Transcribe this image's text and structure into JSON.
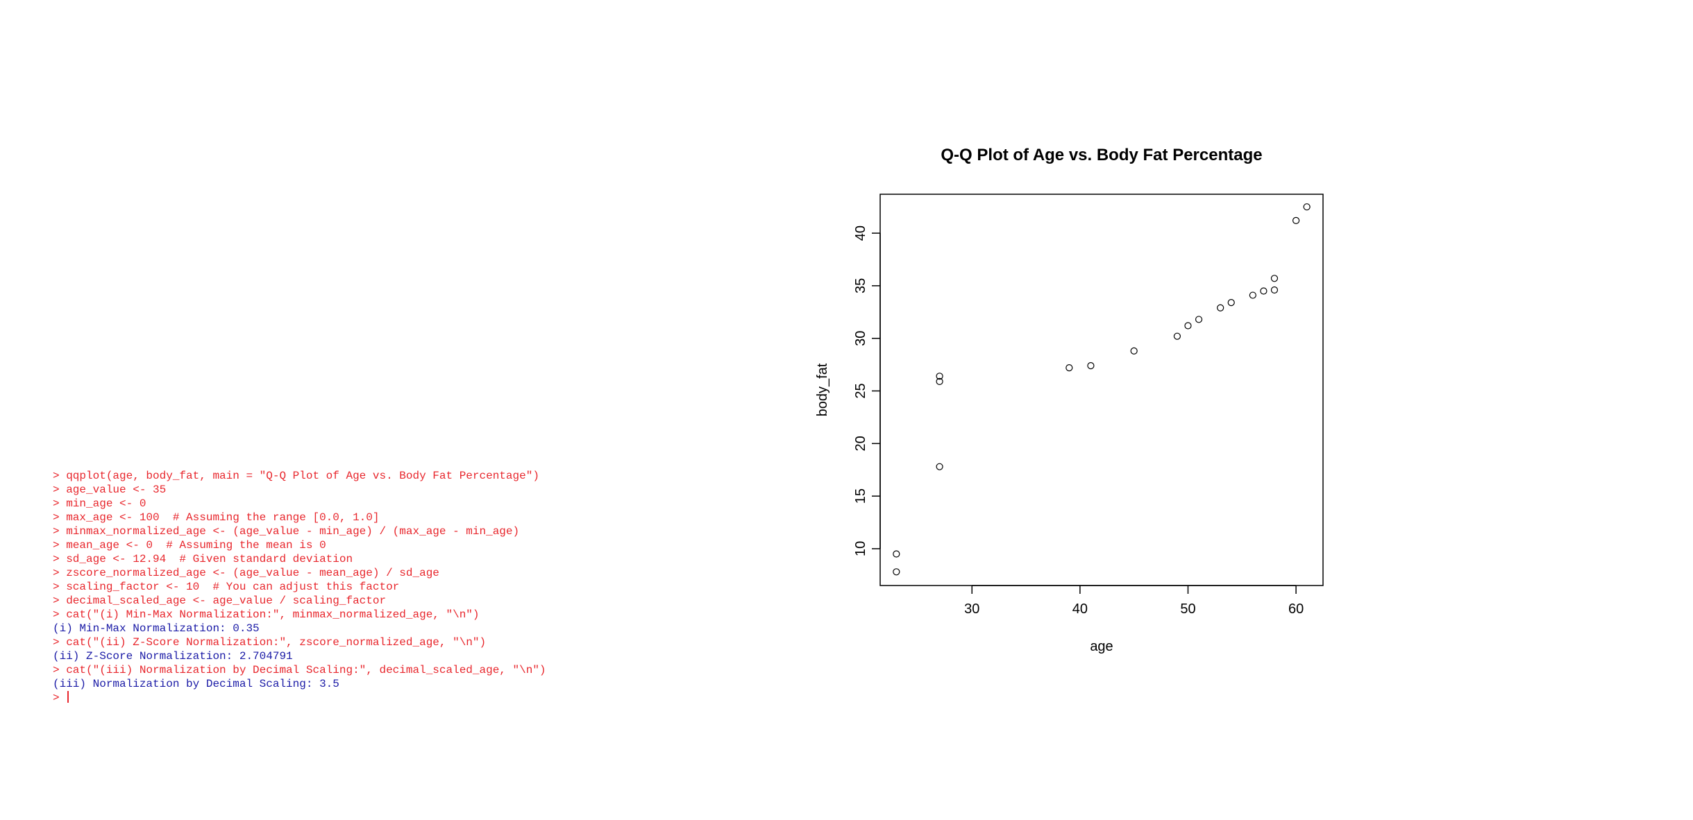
{
  "console": {
    "lines": [
      {
        "kind": "cmd",
        "text": "> qqplot(age, body_fat, main = \"Q-Q Plot of Age vs. Body Fat Percentage\")"
      },
      {
        "kind": "cmd",
        "text": "> age_value <- 35"
      },
      {
        "kind": "cmd",
        "text": "> min_age <- 0"
      },
      {
        "kind": "cmd",
        "text": "> max_age <- 100  # Assuming the range [0.0, 1.0]"
      },
      {
        "kind": "cmd",
        "text": "> minmax_normalized_age <- (age_value - min_age) / (max_age - min_age)"
      },
      {
        "kind": "cmd",
        "text": "> mean_age <- 0  # Assuming the mean is 0"
      },
      {
        "kind": "cmd",
        "text": "> sd_age <- 12.94  # Given standard deviation"
      },
      {
        "kind": "cmd",
        "text": "> zscore_normalized_age <- (age_value - mean_age) / sd_age"
      },
      {
        "kind": "cmd",
        "text": "> scaling_factor <- 10  # You can adjust this factor"
      },
      {
        "kind": "cmd",
        "text": "> decimal_scaled_age <- age_value / scaling_factor"
      },
      {
        "kind": "cmd",
        "text": "> cat(\"(i) Min-Max Normalization:\", minmax_normalized_age, \"\\n\")"
      },
      {
        "kind": "out",
        "text": "(i) Min-Max Normalization: 0.35"
      },
      {
        "kind": "cmd",
        "text": "> cat(\"(ii) Z-Score Normalization:\", zscore_normalized_age, \"\\n\")"
      },
      {
        "kind": "out",
        "text": "(ii) Z-Score Normalization: 2.704791"
      },
      {
        "kind": "cmd",
        "text": "> cat(\"(iii) Normalization by Decimal Scaling:\", decimal_scaled_age, \"\\n\")"
      },
      {
        "kind": "out",
        "text": "(iii) Normalization by Decimal Scaling: 3.5"
      }
    ],
    "prompt": "> "
  },
  "chart_data": {
    "type": "scatter",
    "title": "Q-Q Plot of Age vs. Body Fat Percentage",
    "xlabel": "age",
    "ylabel": "body_fat",
    "xlim": [
      21.5,
      62.5
    ],
    "ylim": [
      6.5,
      43.7
    ],
    "xticks": [
      30,
      40,
      50,
      60
    ],
    "yticks": [
      10,
      15,
      20,
      25,
      30,
      35,
      40
    ],
    "grid": false,
    "x": [
      23,
      23,
      27,
      27,
      27,
      39,
      41,
      45,
      49,
      50,
      51,
      53,
      54,
      56,
      57,
      58,
      58,
      60,
      61
    ],
    "y": [
      7.8,
      9.5,
      17.8,
      25.9,
      26.4,
      27.2,
      27.4,
      28.8,
      30.2,
      31.2,
      31.8,
      32.9,
      33.4,
      34.1,
      34.5,
      34.6,
      35.7,
      41.2,
      42.5
    ]
  }
}
